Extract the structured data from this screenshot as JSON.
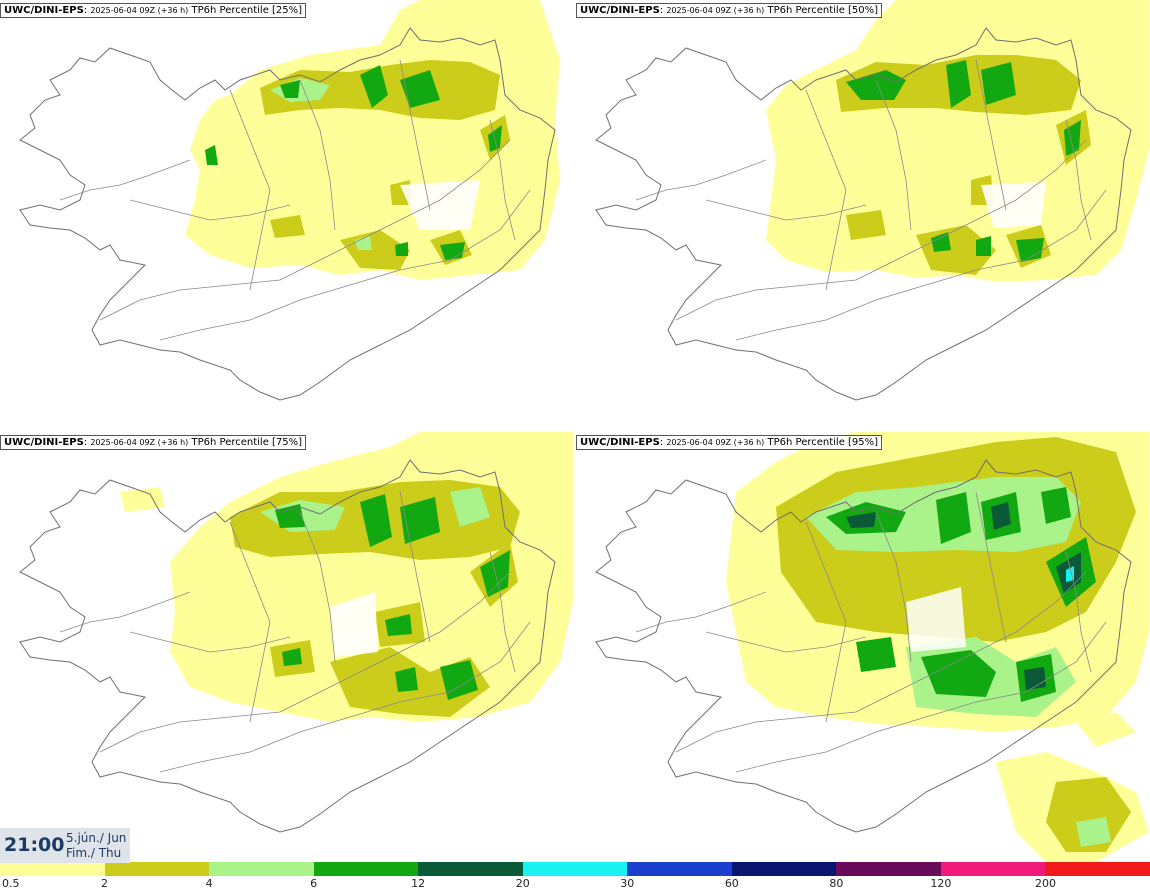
{
  "panels": [
    {
      "model": "UWC/DINI-EPS",
      "run": "2025-06-04 09Z (+36 h)",
      "product": "TP6h Percentile [25%]"
    },
    {
      "model": "UWC/DINI-EPS",
      "run": "2025-06-04 09Z (+36 h)",
      "product": "TP6h Percentile [50%]"
    },
    {
      "model": "UWC/DINI-EPS",
      "run": "2025-06-04 09Z (+36 h)",
      "product": "TP6h Percentile [75%]"
    },
    {
      "model": "UWC/DINI-EPS",
      "run": "2025-06-04 09Z (+36 h)",
      "product": "TP6h Percentile [95%]"
    }
  ],
  "valid_time": {
    "time": "21:00",
    "date_line1": "5.jún./ Jun",
    "date_line2": "Fim./ Thu"
  },
  "legend": {
    "labels": [
      "0.5",
      "2",
      "4",
      "6",
      "12",
      "20",
      "30",
      "60",
      "80",
      "120",
      "200"
    ],
    "colors": [
      "#ffff99",
      "#cccc1a",
      "#aaf28a",
      "#12a812",
      "#0a5a3a",
      "#18f2f2",
      "#1a3fcc",
      "#0a1570",
      "#6a0a5a",
      "#f01a7a",
      "#f01a1a"
    ]
  },
  "colors": {
    "land_outline": "#6f6f6f",
    "precip_light": "#ffff99",
    "precip_2": "#cccc1a",
    "precip_4": "#aaf28a",
    "precip_6": "#12a812",
    "precip_12": "#0a5a3a",
    "precip_20": "#18f2f2"
  }
}
